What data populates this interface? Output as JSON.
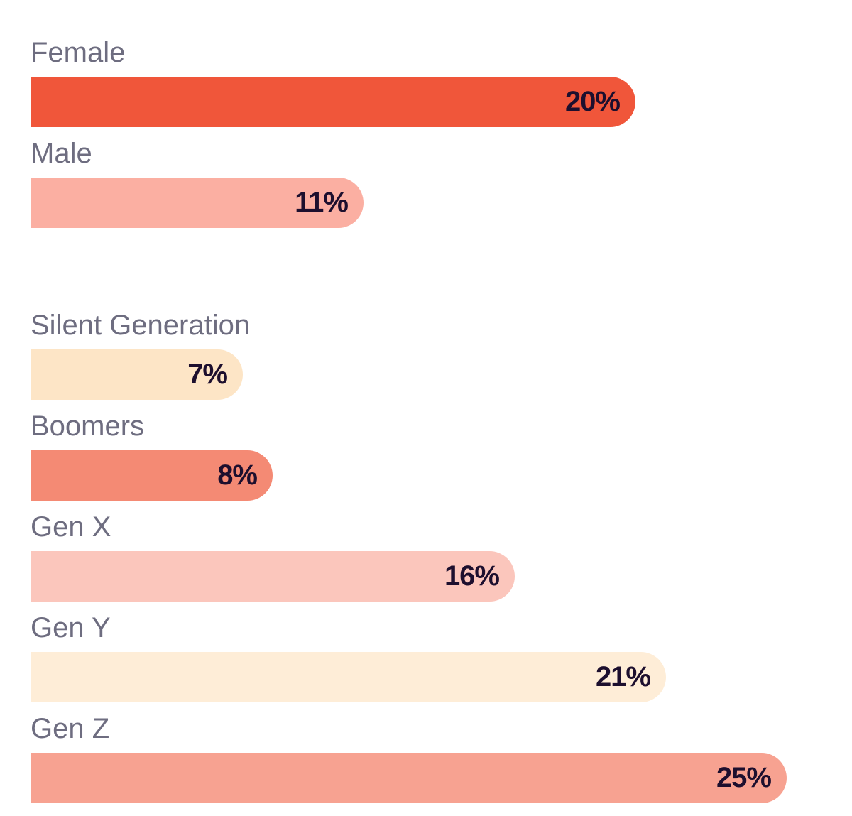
{
  "chart_data": [
    {
      "type": "bar",
      "orientation": "horizontal",
      "xlim": [
        0,
        25
      ],
      "categories": [
        "Female",
        "Male"
      ],
      "values": [
        20,
        11
      ],
      "value_labels": [
        "20%",
        "11%"
      ],
      "colors": [
        "#f0563a",
        "#fbafa2"
      ]
    },
    {
      "type": "bar",
      "orientation": "horizontal",
      "xlim": [
        0,
        25
      ],
      "categories": [
        "Silent Generation",
        "Boomers",
        "Gen X",
        "Gen Y",
        "Gen Z"
      ],
      "values": [
        7,
        8,
        16,
        21,
        25
      ],
      "value_labels": [
        "7%",
        "8%",
        "16%",
        "21%",
        "25%"
      ],
      "colors": [
        "#fde5c6",
        "#f48a74",
        "#fbc6bc",
        "#feedd7",
        "#f7a291"
      ]
    }
  ]
}
